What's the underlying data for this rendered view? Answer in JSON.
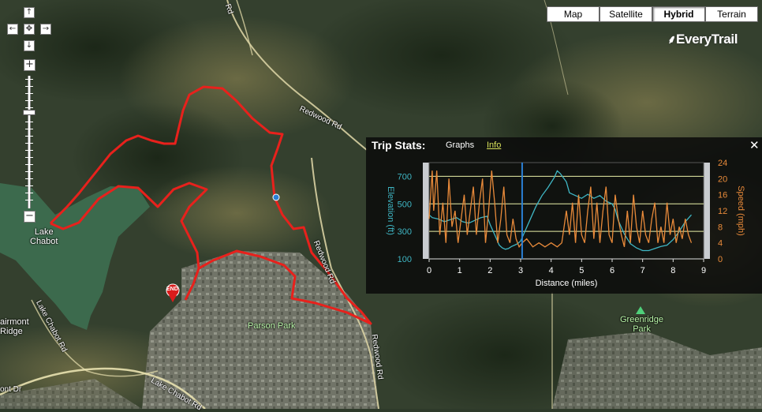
{
  "map_type_buttons": [
    {
      "label": "Map",
      "active": false
    },
    {
      "label": "Satellite",
      "active": false
    },
    {
      "label": "Hybrid",
      "active": true
    },
    {
      "label": "Terrain",
      "active": false
    }
  ],
  "brand": {
    "logo_text": "EveryTrail",
    "icon": "everytrail-logo-icon"
  },
  "navigation": {
    "pan_up": "↑",
    "pan_left": "←",
    "pan_center": "✥",
    "pan_right": "→",
    "pan_down": "↓",
    "zoom_in": "+",
    "zoom_out": "−",
    "zoom_level_fraction": 0.27
  },
  "map_labels": {
    "lake_chabot_1": "Lake",
    "lake_chabot_2": "Chabot",
    "fairmont_ridge_1": "airmont",
    "fairmont_ridge_2": "Ridge",
    "parson_park": "Parson Park",
    "greenridge_park_1": "Greenridge",
    "greenridge_park_2": "Park",
    "road_redwood_1": "Redwood Rd",
    "road_redwood_2": "Redwood Rd",
    "road_redwood_3": "Redwood Rd",
    "road_lake_chabot_1": "Lake Chabot Rd",
    "road_lake_chabot_2": "Lake Chabot Rd",
    "road_top": "Rd",
    "road_bottom_left": "ont Dr",
    "end_marker": "END"
  },
  "colors": {
    "trail": "#e8211c",
    "elevation": "#3fb6c4",
    "speed": "#e88a3a",
    "cursor": "#2a7fd4",
    "gridline": "#e9f0a8",
    "park_icon": "#4fd07a"
  },
  "trip_stats": {
    "title": "Trip Stats:",
    "tab_graphs": "Graphs",
    "tab_info": "Info",
    "close_symbol": "✕"
  },
  "chart_data": {
    "type": "line",
    "xlabel": "Distance (miles)",
    "ylabel_left": "Elevation (ft)",
    "ylabel_right": "Speed (mph)",
    "xlim": [
      0,
      9
    ],
    "x_ticks": [
      0,
      1,
      2,
      3,
      4,
      5,
      6,
      7,
      8,
      9
    ],
    "ylim_left": [
      100,
      800
    ],
    "y_ticks_left": [
      100,
      300,
      500,
      700
    ],
    "ylim_right": [
      0,
      24
    ],
    "y_ticks_right": [
      0,
      4,
      8,
      12,
      16,
      20,
      24
    ],
    "cursor_x": 3.05,
    "series": [
      {
        "name": "Elevation (ft)",
        "axis": "left",
        "x": [
          0,
          0.1,
          0.3,
          0.5,
          0.7,
          0.9,
          1.1,
          1.3,
          1.5,
          1.7,
          1.9,
          2.0,
          2.1,
          2.2,
          2.3,
          2.4,
          2.5,
          2.6,
          2.7,
          2.8,
          2.9,
          3.0,
          3.1,
          3.3,
          3.5,
          3.7,
          3.9,
          4.1,
          4.2,
          4.3,
          4.5,
          4.6,
          4.8,
          5.0,
          5.2,
          5.4,
          5.6,
          5.8,
          6.0,
          6.1,
          6.2,
          6.4,
          6.6,
          6.8,
          7.0,
          7.2,
          7.4,
          7.6,
          7.8,
          8.0,
          8.2,
          8.4,
          8.6
        ],
        "values": [
          420,
          400,
          390,
          370,
          385,
          400,
          370,
          360,
          380,
          400,
          410,
          350,
          300,
          250,
          200,
          180,
          170,
          175,
          190,
          200,
          210,
          230,
          280,
          380,
          480,
          560,
          620,
          690,
          740,
          720,
          660,
          580,
          560,
          540,
          570,
          540,
          560,
          520,
          500,
          460,
          380,
          280,
          210,
          180,
          160,
          160,
          175,
          190,
          200,
          240,
          300,
          370,
          420
        ]
      },
      {
        "name": "Speed (mph)",
        "axis": "right",
        "x": [
          0,
          0.1,
          0.15,
          0.25,
          0.35,
          0.45,
          0.55,
          0.65,
          0.75,
          0.85,
          0.95,
          1.05,
          1.15,
          1.25,
          1.35,
          1.45,
          1.55,
          1.65,
          1.75,
          1.85,
          1.95,
          2.05,
          2.15,
          2.25,
          2.35,
          2.45,
          2.55,
          2.65,
          2.75,
          2.85,
          2.95,
          3.05,
          3.2,
          3.4,
          3.6,
          3.8,
          4.0,
          4.2,
          4.35,
          4.5,
          4.6,
          4.7,
          4.8,
          4.9,
          5.0,
          5.1,
          5.2,
          5.3,
          5.4,
          5.5,
          5.6,
          5.7,
          5.8,
          5.9,
          6.0,
          6.1,
          6.2,
          6.3,
          6.4,
          6.5,
          6.6,
          6.7,
          6.8,
          6.9,
          7.0,
          7.1,
          7.2,
          7.3,
          7.4,
          7.5,
          7.6,
          7.7,
          7.8,
          7.9,
          8.0,
          8.1,
          8.2,
          8.3,
          8.4,
          8.5,
          8.6
        ],
        "values": [
          10,
          22,
          12,
          22,
          6,
          14,
          4,
          20,
          8,
          12,
          4,
          10,
          16,
          6,
          12,
          18,
          6,
          14,
          20,
          4,
          12,
          22,
          14,
          4,
          10,
          18,
          6,
          4,
          10,
          5,
          3,
          4,
          5,
          3,
          4,
          3,
          4,
          3,
          4,
          12,
          6,
          14,
          4,
          16,
          6,
          4,
          12,
          18,
          5,
          14,
          4,
          12,
          18,
          6,
          4,
          16,
          10,
          6,
          3,
          12,
          4,
          16,
          8,
          4,
          12,
          6,
          4,
          10,
          14,
          4,
          8,
          4,
          14,
          6,
          10,
          4,
          8,
          5,
          10,
          6,
          4
        ]
      }
    ]
  }
}
